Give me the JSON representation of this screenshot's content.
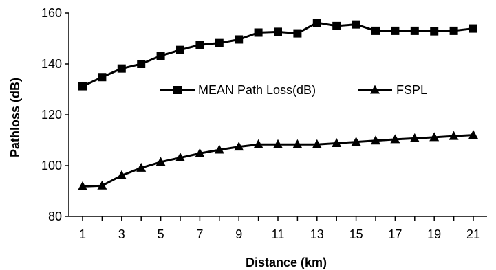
{
  "chart_data": {
    "type": "line",
    "x": [
      1,
      2,
      3,
      4,
      5,
      6,
      7,
      8,
      9,
      10,
      11,
      12,
      13,
      14,
      15,
      16,
      17,
      18,
      19,
      20,
      21
    ],
    "x_tick_labels": [
      "1",
      "3",
      "5",
      "7",
      "9",
      "11",
      "13",
      "15",
      "17",
      "19",
      "21"
    ],
    "y_tick_labels": [
      "80",
      "100",
      "120",
      "140",
      "160"
    ],
    "xlabel": "Distance (km)",
    "ylabel": "Pathloss (dB)",
    "ylim": [
      80,
      160
    ],
    "xlim": [
      1,
      21
    ],
    "grid": false,
    "legend_position": "middle-right",
    "series": [
      {
        "name": "MEAN Path Loss(dB)",
        "marker": "square",
        "values": [
          131.2,
          134.8,
          138.2,
          140.0,
          143.2,
          145.5,
          147.5,
          148.2,
          149.6,
          152.3,
          152.6,
          152.0,
          156.2,
          154.9,
          155.5,
          153.0,
          153.0,
          153.0,
          152.8,
          153.0,
          153.9
        ]
      },
      {
        "name": "FSPL",
        "marker": "triangle",
        "values": [
          91.8,
          92.1,
          96.1,
          99.1,
          101.4,
          103.1,
          104.8,
          106.2,
          107.4,
          108.3,
          108.3,
          108.3,
          108.3,
          108.8,
          109.3,
          109.8,
          110.3,
          110.7,
          111.1,
          111.6,
          112.0
        ]
      }
    ],
    "colors": {
      "line": "#000000",
      "background": "#ffffff"
    }
  }
}
